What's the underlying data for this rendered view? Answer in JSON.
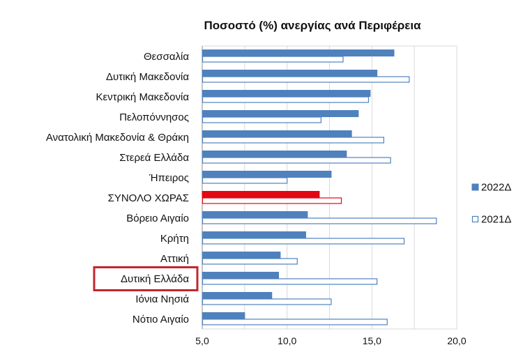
{
  "chart_data": {
    "type": "bar",
    "orientation": "horizontal",
    "title": "Ποσοστό (%) ανεργίας ανά Περιφέρεια",
    "categories": [
      "Θεσσαλία",
      "Δυτική Μακεδονία",
      "Κεντρική Μακεδονία",
      "Πελοπόννησος",
      "Ανατολική Μακεδονία & Θράκη",
      "Στερεά Ελλάδα",
      "Ήπειρος",
      "ΣΥΝΟΛΟ ΧΩΡΑΣ",
      "Βόρειο Αιγαίο",
      "Κρήτη",
      "Αττική",
      "Δυτική Ελλάδα",
      "Ιόνια Νησιά",
      "Νότιο Αιγαίο"
    ],
    "series": [
      {
        "name": "2022Δ",
        "color": "#4F81BD",
        "fill": "solid",
        "values": [
          16.3,
          15.3,
          14.9,
          14.2,
          13.8,
          13.5,
          12.6,
          11.9,
          11.2,
          11.1,
          9.6,
          9.5,
          9.1,
          7.5
        ]
      },
      {
        "name": "2021Δ",
        "color": "#4F81BD",
        "fill": "hollow",
        "values": [
          13.3,
          17.2,
          14.8,
          12.0,
          15.7,
          16.1,
          10.0,
          13.2,
          18.8,
          16.9,
          10.6,
          15.3,
          12.6,
          15.9
        ]
      }
    ],
    "highlight": {
      "category": "ΣΥΝΟΛΟ ΧΩΡΑΣ",
      "color": "#E30613"
    },
    "boxed_category": {
      "category": "Δυτική Ελλάδα",
      "color": "#C0282D"
    },
    "xlim": [
      5.0,
      20.0
    ],
    "xticks": [
      "5,0",
      "10,0",
      "15,0",
      "20,0"
    ],
    "xlabel": "",
    "ylabel": "",
    "grid": "vertical",
    "legend_position": "right"
  }
}
